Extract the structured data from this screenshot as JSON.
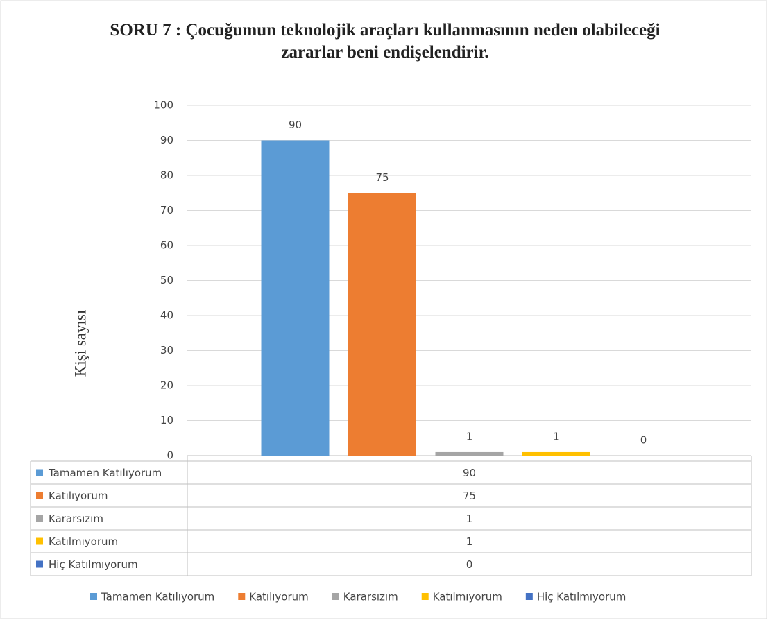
{
  "chart_data": {
    "type": "bar",
    "title": "SORU 7 : Çocuğumun teknolojik araçları kullanmasının neden olabileceği zararlar beni endişelendirir.",
    "ylabel": "Kişi sayısı",
    "series": [
      {
        "name": "Tamamen Katılıyorum",
        "color": "#5b9bd5",
        "values": [
          90
        ]
      },
      {
        "name": "Katılıyorum",
        "color": "#ed7d31",
        "values": [
          75
        ]
      },
      {
        "name": "Kararsızım",
        "color": "#a5a5a5",
        "values": [
          1
        ]
      },
      {
        "name": "Katılmıyorum",
        "color": "#ffc000",
        "values": [
          1
        ]
      },
      {
        "name": "Hiç Katılmıyorum",
        "color": "#4472c4",
        "values": [
          0
        ]
      }
    ],
    "ylim": [
      0,
      100
    ],
    "yticks": [
      0,
      10,
      20,
      30,
      40,
      50,
      60,
      70,
      80,
      90,
      100
    ],
    "grid": true,
    "data_table": true,
    "legend": "bottom"
  }
}
